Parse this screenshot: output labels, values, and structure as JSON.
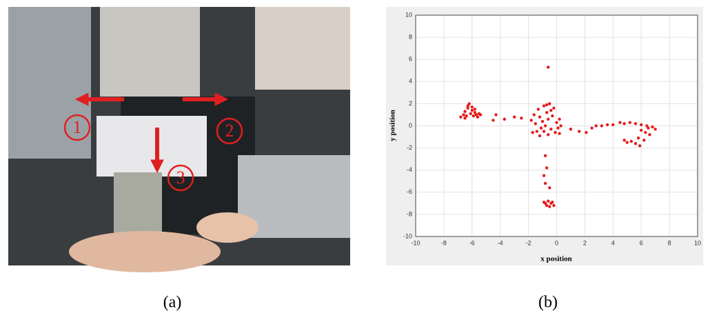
{
  "photo": {
    "labels": [
      "1",
      "2",
      "3"
    ]
  },
  "captions": [
    "(a)",
    "(b)"
  ],
  "chart_data": {
    "type": "scatter",
    "xlabel": "x position",
    "ylabel": "y position",
    "color": "#e41c1c",
    "grid": true,
    "xlim": [
      -10,
      10
    ],
    "ylim": [
      -10,
      10
    ],
    "xticks": [
      -10,
      -8,
      -6,
      -4,
      -2,
      0,
      2,
      4,
      6,
      8,
      10
    ],
    "yticks": [
      -10,
      -8,
      -6,
      -4,
      -2,
      0,
      2,
      4,
      6,
      8,
      10
    ],
    "x": [
      -6.8,
      -6.6,
      -6.5,
      -6.4,
      -6.3,
      -6.2,
      -6.1,
      -6.0,
      -5.9,
      -5.8,
      -5.7,
      -5.6,
      -5.5,
      -6.3,
      -6.0,
      -5.8,
      -6.5,
      -5.4,
      -4.5,
      -4.3,
      -3.7,
      -3.0,
      -2.5,
      -1.8,
      -1.6,
      -1.5,
      -1.4,
      -1.3,
      -1.2,
      -1.1,
      -1.0,
      -0.9,
      -0.8,
      -0.7,
      -0.6,
      -0.6,
      -0.5,
      -0.4,
      -0.3,
      -0.2,
      -0.1,
      0.0,
      0.1,
      0.2,
      0.3,
      -1.7,
      -1.2,
      -0.9,
      -0.7,
      -0.4,
      0.2,
      -0.6,
      -0.8,
      -0.7,
      -0.9,
      -0.8,
      -0.5,
      -0.9,
      -0.7,
      -0.6,
      -0.5,
      -0.4,
      -0.3,
      -0.2,
      -0.8,
      1.0,
      1.6,
      2.1,
      2.5,
      2.8,
      3.2,
      3.6,
      4.0,
      4.5,
      4.8,
      5.2,
      5.6,
      6.0,
      6.4,
      6.8,
      7.0,
      6.6,
      6.2,
      5.9,
      5.6,
      5.3,
      5.0,
      4.8,
      6.0,
      6.3,
      5.8,
      6.5
    ],
    "y": [
      0.8,
      1.0,
      1.3,
      0.9,
      1.6,
      2.0,
      1.1,
      1.4,
      0.9,
      1.2,
      1.0,
      0.8,
      1.1,
      1.8,
      1.7,
      1.5,
      0.7,
      1.0,
      0.5,
      1.0,
      0.6,
      0.8,
      0.7,
      0.5,
      1.0,
      0.2,
      -0.5,
      1.5,
      0.8,
      -0.2,
      0.4,
      1.8,
      0.0,
      1.2,
      -0.8,
      0.6,
      2.0,
      -0.3,
      0.9,
      1.6,
      -0.6,
      0.3,
      -0.2,
      0.6,
      0.0,
      -0.6,
      -0.9,
      -0.5,
      1.9,
      1.4,
      -0.7,
      5.3,
      -2.7,
      -3.8,
      -4.5,
      -5.2,
      -5.6,
      -6.9,
      -7.2,
      -6.8,
      -7.3,
      -7.0,
      -6.9,
      -7.2,
      -7.0,
      -0.3,
      -0.5,
      -0.6,
      -0.2,
      0.0,
      0.0,
      0.1,
      0.1,
      0.3,
      0.2,
      0.3,
      0.2,
      0.1,
      0.0,
      -0.1,
      -0.3,
      -0.8,
      -1.3,
      -1.8,
      -1.6,
      -1.4,
      -1.5,
      -1.3,
      -0.4,
      -0.6,
      -1.1,
      -0.2
    ]
  }
}
